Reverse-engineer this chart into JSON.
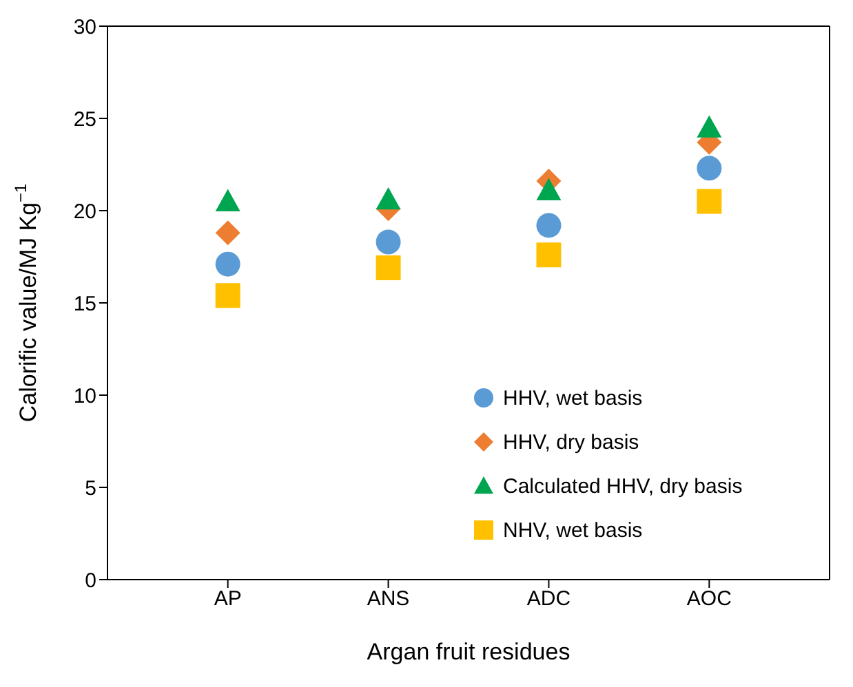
{
  "chart_data": {
    "type": "scatter",
    "xlabel": "Argan fruit residues",
    "ylabel": "Calorific value/MJ Kg$^{−1}$",
    "categories": [
      "AP",
      "ANS",
      "ADC",
      "AOC"
    ],
    "series": [
      {
        "name": "HHV, wet basis",
        "color": "#5b9bd5",
        "marker": "circle",
        "values": [
          17.1,
          18.3,
          19.2,
          22.3
        ]
      },
      {
        "name": "HHV, dry basis",
        "color": "#ed7d31",
        "marker": "diamond",
        "values": [
          18.8,
          20.1,
          21.6,
          23.7
        ]
      },
      {
        "name": "Calculated HHV, dry basis",
        "color": "#00a550",
        "marker": "triangle",
        "values": [
          20.5,
          20.6,
          21.1,
          24.5
        ]
      },
      {
        "name": "NHV, wet basis",
        "color": "#ffc000",
        "marker": "square",
        "values": [
          15.4,
          16.9,
          17.6,
          20.5
        ]
      }
    ],
    "ylim": [
      0,
      30
    ],
    "yticks": [
      0,
      5,
      10,
      15,
      20,
      25,
      30
    ],
    "legend": "bottom right"
  }
}
